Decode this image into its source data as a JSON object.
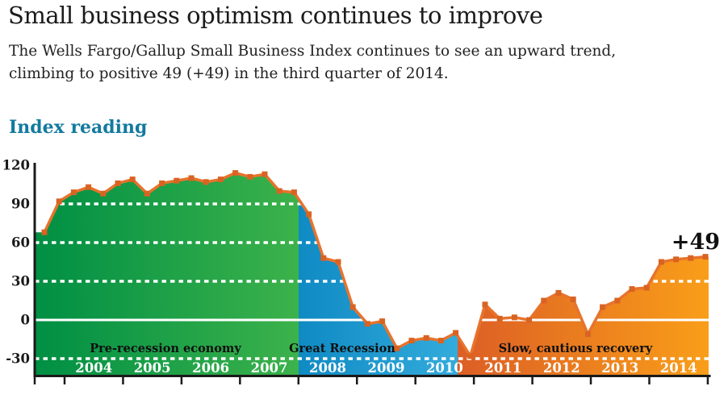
{
  "header": {
    "title": "Small business optimism continues to improve",
    "subtitle_line1": "The Wells Fargo/Gallup Small Business Index continues to see an upward trend,",
    "subtitle_line2": "climbing to positive 49 (+49) in the third quarter of 2014."
  },
  "chart": {
    "heading": "Index reading",
    "heading_color": "#137a9f"
  },
  "chart_data": {
    "type": "area",
    "title": "Index reading",
    "years": [
      "2004",
      "2005",
      "2006",
      "2007",
      "2008",
      "2009",
      "2010",
      "2011",
      "2012",
      "2013",
      "2014"
    ],
    "y_ticks": [
      120,
      90,
      60,
      30,
      0,
      -30
    ],
    "ylim": [
      -42,
      120
    ],
    "points_per_year": 4,
    "values": [
      68,
      92,
      99,
      103,
      98,
      106,
      109,
      98,
      106,
      108,
      110,
      107,
      109,
      114,
      111,
      113,
      100,
      99,
      82,
      48,
      45,
      10,
      -3,
      -1,
      -22,
      -16,
      -14,
      -16,
      -10,
      -28,
      12,
      1,
      2,
      0,
      15,
      21,
      16,
      -11,
      10,
      15,
      24,
      25,
      45,
      47,
      48,
      49
    ],
    "annotation": "+49",
    "regions": [
      {
        "label": "Pre-recession economy",
        "gradient_start": "#008f44",
        "gradient_end": "#3cb24b"
      },
      {
        "label": "Great Recession",
        "gradient_start": "#0f8ac3",
        "gradient_end": "#33abdc"
      },
      {
        "label": "Slow, cautious recovery",
        "gradient_start": "#dc5e25",
        "gradient_end": "#f99e19"
      }
    ],
    "line_color": "#e8732c",
    "marker_color": "#d96322",
    "grid_color": "#ffffff",
    "axis_color": "#1a1a1a",
    "grid_style": "dotted white lines at 90, 60, 30, -30; solid white line at 0",
    "legend_position": "none"
  }
}
